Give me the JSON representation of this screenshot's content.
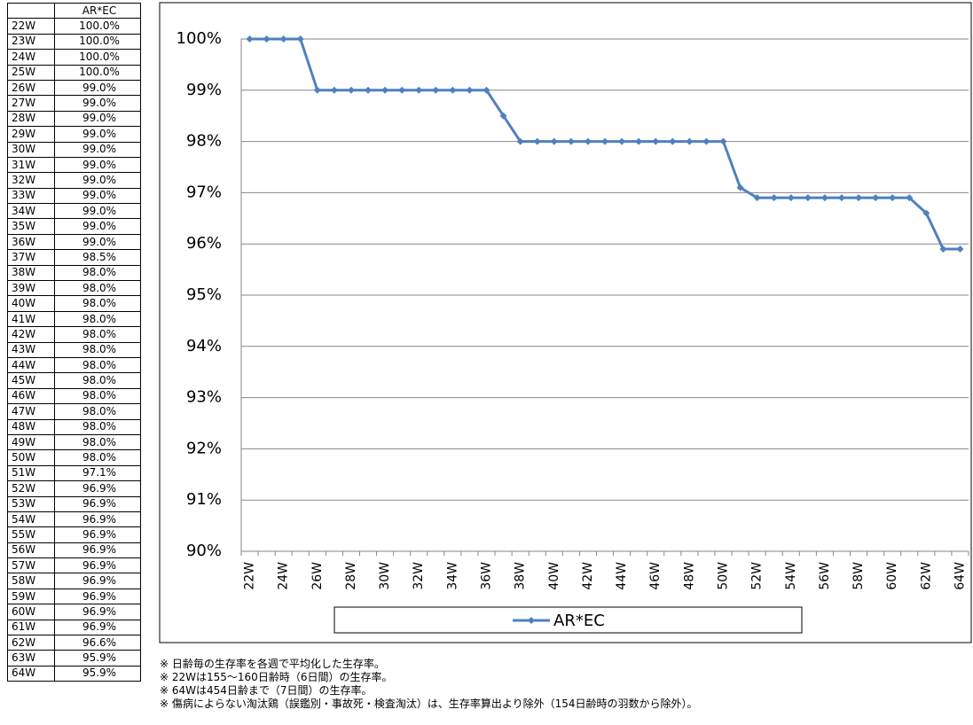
{
  "table": {
    "columns": [
      "AR*EC"
    ],
    "rows": [
      [
        "22W",
        "100.0%"
      ],
      [
        "23W",
        "100.0%"
      ],
      [
        "24W",
        "100.0%"
      ],
      [
        "25W",
        "100.0%"
      ],
      [
        "26W",
        "99.0%"
      ],
      [
        "27W",
        "99.0%"
      ],
      [
        "28W",
        "99.0%"
      ],
      [
        "29W",
        "99.0%"
      ],
      [
        "30W",
        "99.0%"
      ],
      [
        "31W",
        "99.0%"
      ],
      [
        "32W",
        "99.0%"
      ],
      [
        "33W",
        "99.0%"
      ],
      [
        "34W",
        "99.0%"
      ],
      [
        "35W",
        "99.0%"
      ],
      [
        "36W",
        "99.0%"
      ],
      [
        "37W",
        "98.5%"
      ],
      [
        "38W",
        "98.0%"
      ],
      [
        "39W",
        "98.0%"
      ],
      [
        "40W",
        "98.0%"
      ],
      [
        "41W",
        "98.0%"
      ],
      [
        "42W",
        "98.0%"
      ],
      [
        "43W",
        "98.0%"
      ],
      [
        "44W",
        "98.0%"
      ],
      [
        "45W",
        "98.0%"
      ],
      [
        "46W",
        "98.0%"
      ],
      [
        "47W",
        "98.0%"
      ],
      [
        "48W",
        "98.0%"
      ],
      [
        "49W",
        "98.0%"
      ],
      [
        "50W",
        "98.0%"
      ],
      [
        "51W",
        "97.1%"
      ],
      [
        "52W",
        "96.9%"
      ],
      [
        "53W",
        "96.9%"
      ],
      [
        "54W",
        "96.9%"
      ],
      [
        "55W",
        "96.9%"
      ],
      [
        "56W",
        "96.9%"
      ],
      [
        "57W",
        "96.9%"
      ],
      [
        "58W",
        "96.9%"
      ],
      [
        "59W",
        "96.9%"
      ],
      [
        "60W",
        "96.9%"
      ],
      [
        "61W",
        "96.9%"
      ],
      [
        "62W",
        "96.6%"
      ],
      [
        "63W",
        "95.9%"
      ],
      [
        "64W",
        "95.9%"
      ]
    ]
  },
  "chart_data": {
    "type": "line",
    "categories": [
      "22W",
      null,
      "24W",
      null,
      "26W",
      null,
      "28W",
      null,
      "30W",
      null,
      "32W",
      null,
      "34W",
      null,
      "36W",
      null,
      "38W",
      null,
      "40W",
      null,
      "42W",
      null,
      "44W",
      null,
      "46W",
      null,
      "48W",
      null,
      "50W",
      null,
      "52W",
      null,
      "54W",
      null,
      "56W",
      null,
      "58W",
      null,
      "60W",
      null,
      "62W",
      null,
      "64W"
    ],
    "series": [
      {
        "name": "AR*EC",
        "color": "#4f81bd",
        "values": [
          100,
          100,
          100,
          100,
          99,
          99,
          99,
          99,
          99,
          99,
          99,
          99,
          99,
          99,
          99,
          98.5,
          98,
          98,
          98,
          98,
          98,
          98,
          98,
          98,
          98,
          98,
          98,
          98,
          98,
          97.1,
          96.9,
          96.9,
          96.9,
          96.9,
          96.9,
          96.9,
          96.9,
          96.9,
          96.9,
          96.9,
          96.6,
          95.9,
          95.9
        ]
      }
    ],
    "ylim": [
      90,
      100
    ],
    "yticks": [
      {
        "value": 90,
        "label": "90%"
      },
      {
        "value": 91,
        "label": "91%"
      },
      {
        "value": 92,
        "label": "92%"
      },
      {
        "value": 93,
        "label": "93%"
      },
      {
        "value": 94,
        "label": "94%"
      },
      {
        "value": 95,
        "label": "95%"
      },
      {
        "value": 96,
        "label": "96%"
      },
      {
        "value": 97,
        "label": "97%"
      },
      {
        "value": 98,
        "label": "98%"
      },
      {
        "value": 99,
        "label": "99%"
      },
      {
        "value": 100,
        "label": "100%"
      }
    ],
    "grid": true,
    "legend": "bottom"
  },
  "notes": [
    "※ 日齢毎の生存率を各週で平均化した生存率。",
    "※ 22Wは155～160日齢時（6日間）の生存率。",
    "※ 64Wは454日齢まで（7日間）の生存率。",
    "※ 傷病によらない淘汰鶏（誤鑑別・事故死・検査淘汰）は、生存率算出より除外（154日齢時の羽数から除外）。"
  ]
}
